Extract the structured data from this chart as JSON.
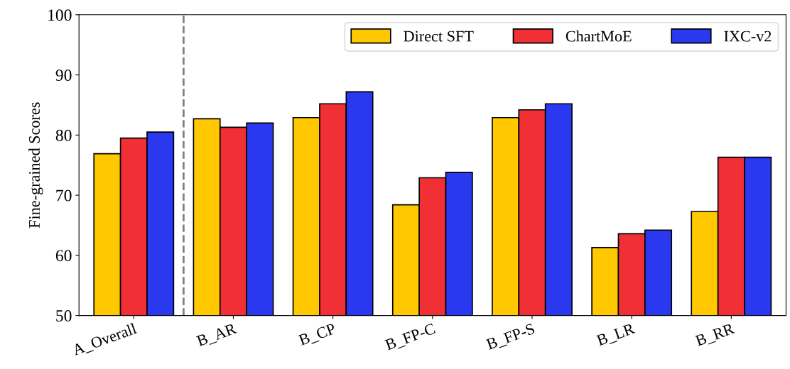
{
  "chart_data": {
    "type": "bar",
    "ylabel": "Fine-grained Scores",
    "categories": [
      "A_Overall",
      "B_AR",
      "B_CP",
      "B_FP-C",
      "B_FP-S",
      "B_LR",
      "B_RR"
    ],
    "series": [
      {
        "name": "Direct SFT",
        "color": "#ffc800",
        "values": [
          76.9,
          82.7,
          82.9,
          68.4,
          82.9,
          61.3,
          67.3
        ]
      },
      {
        "name": "ChartMoE",
        "color": "#f03035",
        "values": [
          79.5,
          81.3,
          85.2,
          72.9,
          84.2,
          63.6,
          76.3
        ]
      },
      {
        "name": "IXC-v2",
        "color": "#2a38ef",
        "values": [
          80.5,
          82.0,
          87.2,
          73.8,
          85.2,
          64.2,
          76.3
        ]
      }
    ],
    "ylim": [
      50,
      100
    ],
    "yticks": [
      50,
      60,
      70,
      80,
      90,
      100
    ],
    "grid": false,
    "legend": "top right"
  }
}
